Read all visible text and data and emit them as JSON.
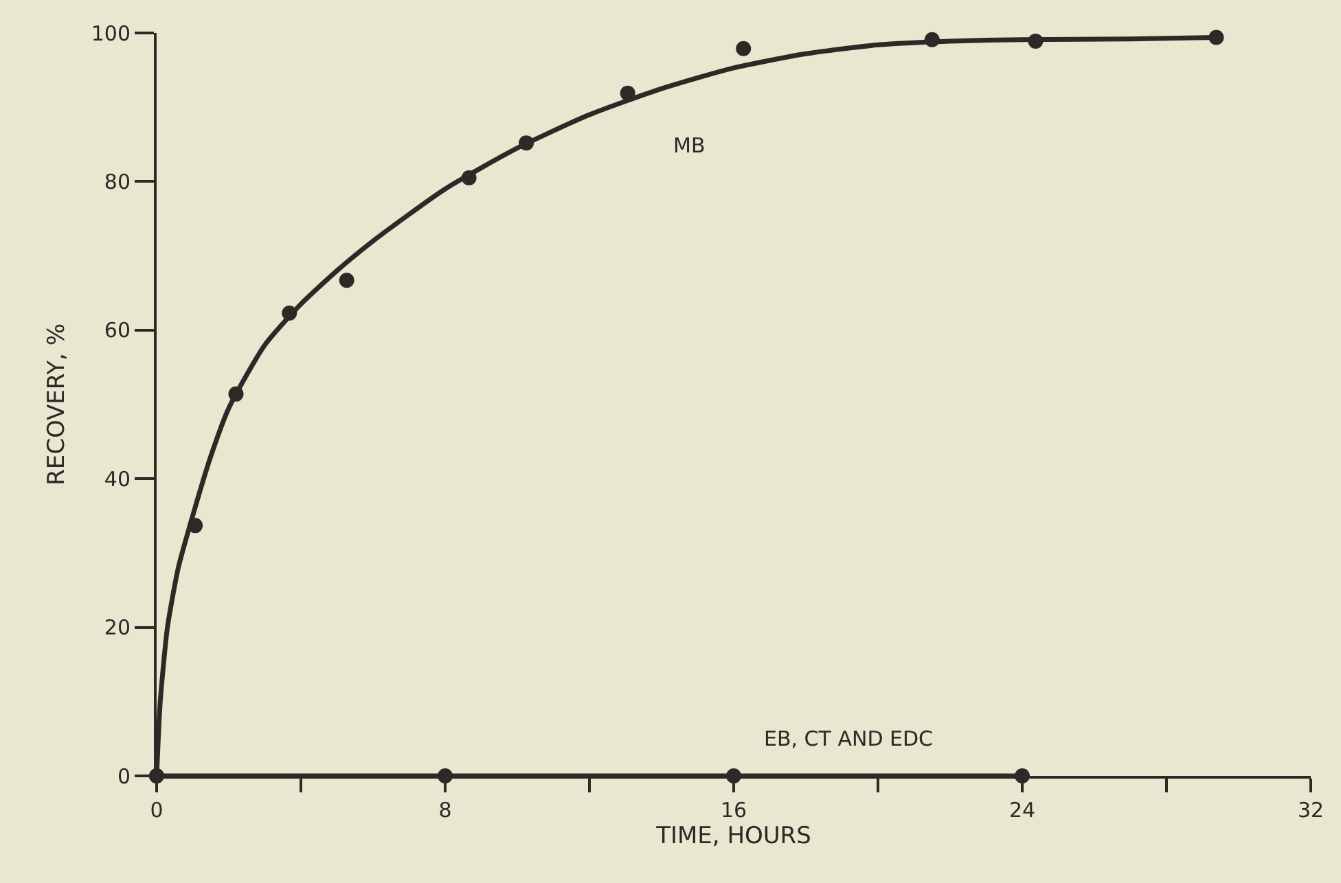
{
  "chart_data": {
    "type": "scatter",
    "xlabel": "TIME, HOURS",
    "ylabel": "RECOVERY, %",
    "xlim": [
      0,
      32
    ],
    "xticks": [
      0,
      {
        "value": 4,
        "label": null
      },
      8,
      {
        "value": 12,
        "label": null
      },
      16,
      {
        "value": 20,
        "label": null
      },
      24,
      {
        "value": 28,
        "label": null
      },
      32
    ],
    "ylim": [
      0,
      100
    ],
    "yticks": [
      0,
      20,
      40,
      60,
      80,
      100
    ],
    "grid": false,
    "legend": false,
    "series": [
      {
        "marker": "circle",
        "color": "#2e2826",
        "x": [
          0,
          1.07,
          2.2,
          3.68,
          5.27,
          8.66,
          10.25,
          13.06,
          16.27,
          21.5,
          24.37,
          29.38
        ],
        "values": [
          0,
          33.7,
          51.4,
          62.3,
          66.7,
          80.5,
          85.2,
          91.9,
          97.9,
          99.1,
          98.9,
          99.4
        ]
      },
      {
        "type": "line",
        "name": "MB",
        "marker": "none",
        "color": "#2e2826",
        "x": [
          0,
          0.1,
          0.3,
          0.6,
          1,
          1.5,
          2,
          3,
          4,
          5,
          6,
          8,
          10,
          12,
          14,
          16,
          18,
          20,
          22,
          24,
          27,
          29.38
        ],
        "values": [
          0,
          10,
          20,
          28,
          35,
          43,
          49.5,
          58,
          63.5,
          68,
          72,
          79,
          84.5,
          89,
          92.5,
          95.3,
          97.2,
          98.4,
          98.9,
          99.1,
          99.2,
          99.4
        ]
      },
      {
        "type": "line",
        "name": "EB, CT AND EDC",
        "marker": "circle",
        "color": "#2e2826",
        "x": [
          0,
          8,
          16,
          24
        ],
        "values": [
          0,
          0,
          0,
          0
        ]
      }
    ]
  }
}
